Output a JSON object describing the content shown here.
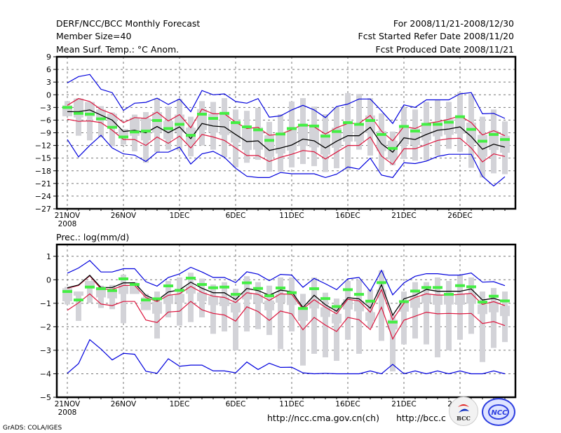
{
  "header": {
    "title": "DERF/NCC/BCC Monthly Forecast",
    "member_size": "Member Size=40",
    "temp_label": "Mean Surf. Temp.: °C Anom.",
    "period": "For 2008/11/21-2008/12/30",
    "started": "Fcst Started Refer Date 2008/11/20",
    "produced": "Fcst Produced Date 2008/11/21"
  },
  "footer": {
    "url1": "http://ncc.cma.gov.cn(ch)",
    "url2": "http://bcc.c",
    "grads": "GrADS: COLA/IGES",
    "logo1": "BCC",
    "logo2": "NCC"
  },
  "colors": {
    "mean": "#000000",
    "spread": "#dc143c",
    "extreme": "#0000dd",
    "median": "#44ee44",
    "box": "#d3d3d8"
  },
  "chart_data": [
    {
      "type": "line",
      "title": "Mean Surf. Temp.: °C Anom.",
      "ylabel": "°C Anom.",
      "ylim": [
        -27,
        9
      ],
      "yticks": [
        9,
        6,
        3,
        0,
        -3,
        -6,
        -9,
        -12,
        -15,
        -18,
        -21,
        -24,
        -27
      ],
      "xticks": [
        {
          "day": 0,
          "label": "21NOV",
          "sub": "2008"
        },
        {
          "day": 5,
          "label": "26NOV"
        },
        {
          "day": 10,
          "label": "1DEC"
        },
        {
          "day": 15,
          "label": "6DEC"
        },
        {
          "day": 20,
          "label": "11DEC"
        },
        {
          "day": 25,
          "label": "16DEC"
        },
        {
          "day": 30,
          "label": "21DEC"
        },
        {
          "day": 35,
          "label": "26DEC"
        }
      ],
      "grid": true,
      "days": 40,
      "series": [
        {
          "name": "max",
          "color": "extreme",
          "values": [
            2.8,
            4.3,
            4.8,
            1.3,
            0.5,
            -3.7,
            -2.0,
            -1.8,
            -0.8,
            -2.3,
            -1.0,
            -4.0,
            1.0,
            0.0,
            0.2,
            -1.6,
            -2.0,
            -0.9,
            -5.3,
            -5.0,
            -3.6,
            -2.5,
            -3.6,
            -5.4,
            -2.8,
            -2.2,
            -1.0,
            -1.0,
            -3.8,
            -6.8,
            -2.4,
            -3.0,
            -1.2,
            -1.2,
            -1.2,
            0.2,
            0.5,
            -4.5,
            -4.4,
            -5.6
          ]
        },
        {
          "name": "upper",
          "color": "spread",
          "values": [
            -2.5,
            -0.9,
            -1.6,
            -3.5,
            -4.5,
            -6.6,
            -5.4,
            -5.6,
            -4.1,
            -6.2,
            -4.7,
            -7.8,
            -3.4,
            -4.5,
            -4.5,
            -6.5,
            -8.0,
            -7.7,
            -9.6,
            -9.3,
            -8.3,
            -7.0,
            -7.6,
            -9.3,
            -7.8,
            -6.8,
            -6.8,
            -4.9,
            -8.6,
            -10.9,
            -7.5,
            -8.0,
            -6.8,
            -6.4,
            -5.8,
            -5.0,
            -6.6,
            -9.5,
            -8.5,
            -9.7
          ]
        },
        {
          "name": "mean",
          "color": "mean",
          "values": [
            -4.0,
            -4.0,
            -3.6,
            -4.8,
            -6.0,
            -8.7,
            -8.4,
            -9.0,
            -7.5,
            -9.0,
            -7.6,
            -10.4,
            -6.8,
            -7.4,
            -7.6,
            -9.4,
            -11.1,
            -10.9,
            -13.2,
            -12.6,
            -11.9,
            -10.5,
            -10.9,
            -12.6,
            -11.0,
            -9.7,
            -9.7,
            -7.7,
            -11.6,
            -13.6,
            -10.2,
            -10.6,
            -9.4,
            -8.4,
            -8.1,
            -7.6,
            -9.9,
            -12.9,
            -11.7,
            -12.4
          ]
        },
        {
          "name": "lower",
          "color": "spread",
          "values": [
            -5.8,
            -6.3,
            -6.2,
            -6.6,
            -8.4,
            -10.6,
            -10.6,
            -12.0,
            -10.0,
            -11.5,
            -9.8,
            -12.6,
            -9.4,
            -10.0,
            -10.8,
            -12.6,
            -14.4,
            -14.4,
            -15.8,
            -14.8,
            -14.1,
            -13.2,
            -13.5,
            -15.2,
            -13.6,
            -12.0,
            -12.0,
            -10.0,
            -14.5,
            -16.5,
            -12.8,
            -12.8,
            -11.8,
            -10.8,
            -10.4,
            -10.3,
            -12.6,
            -15.9,
            -14.0,
            -14.6
          ]
        },
        {
          "name": "min",
          "color": "extreme",
          "values": [
            -10.6,
            -14.7,
            -12.0,
            -9.6,
            -12.6,
            -14.0,
            -14.3,
            -15.8,
            -13.6,
            -13.6,
            -12.4,
            -16.4,
            -14.0,
            -13.4,
            -14.8,
            -17.4,
            -19.3,
            -19.6,
            -19.6,
            -18.4,
            -18.7,
            -18.7,
            -18.7,
            -19.6,
            -18.8,
            -17.1,
            -17.6,
            -15.0,
            -19.0,
            -19.6,
            -16.1,
            -16.3,
            -15.7,
            -14.6,
            -14.1,
            -14.1,
            -14.1,
            -19.3,
            -21.6,
            -19.4
          ]
        },
        {
          "name": "median",
          "color": "median",
          "values": [
            -3.0,
            -4.4,
            -4.6,
            -5.7,
            -7.7,
            -10.0,
            -8.8,
            -8.6,
            -6.1,
            -8.0,
            -7.0,
            -9.6,
            -4.6,
            -5.6,
            -4.4,
            -6.6,
            -7.6,
            -8.3,
            -10.8,
            -9.3,
            -8.0,
            -7.2,
            -7.4,
            -9.8,
            -8.7,
            -6.6,
            -7.0,
            -6.1,
            -9.4,
            -12.7,
            -7.5,
            -8.6,
            -7.0,
            -7.0,
            -6.5,
            -5.2,
            -8.2,
            -11.0,
            -9.4,
            -10.6
          ]
        },
        {
          "name": "box_hi",
          "color": "box",
          "values": [
            -1.5,
            -0.8,
            -1.7,
            -2.7,
            -4.2,
            -8.1,
            -4.7,
            -4.1,
            -0.8,
            -2.8,
            -1.0,
            -5.2,
            -1.5,
            -1.7,
            -0.8,
            -3.5,
            -3.8,
            -3.1,
            -6.4,
            -4.6,
            -1.6,
            -0.8,
            -2.8,
            -4.6,
            -3.0,
            0.4,
            0.2,
            -0.8,
            -4.4,
            -8.7,
            -3.0,
            -3.5,
            -1.7,
            -1.2,
            -1.7,
            0.6,
            0.2,
            -5.2,
            -3.5,
            -6.3
          ]
        },
        {
          "name": "box_lo",
          "color": "box",
          "values": [
            -5.0,
            -9.7,
            -10.8,
            -10.1,
            -12.2,
            -11.8,
            -13.4,
            -16.1,
            -13.6,
            -13.0,
            -13.2,
            -14.6,
            -12.0,
            -13.0,
            -14.8,
            -17.2,
            -16.1,
            -15.4,
            -18.2,
            -18.2,
            -17.2,
            -16.4,
            -16.9,
            -18.3,
            -17.4,
            -17.8,
            -13.0,
            -14.4,
            -18.0,
            -16.7,
            -15.2,
            -15.6,
            -15.6,
            -14.4,
            -12.8,
            -13.5,
            -17.3,
            -19.6,
            -18.6,
            -18.8
          ]
        }
      ]
    },
    {
      "type": "line",
      "title": "Prec.: log(mm/d)",
      "ylabel": "log(mm/d)",
      "ylim": [
        -5,
        1.5
      ],
      "yticks": [
        1,
        0,
        -1,
        -2,
        -3,
        -4,
        -5
      ],
      "xticks": [
        {
          "day": 0,
          "label": "21NOV",
          "sub": "2008"
        },
        {
          "day": 5,
          "label": "26NOV"
        },
        {
          "day": 10,
          "label": "1DEC"
        },
        {
          "day": 15,
          "label": "6DEC"
        },
        {
          "day": 20,
          "label": "11DEC"
        },
        {
          "day": 25,
          "label": "16DEC"
        },
        {
          "day": 30,
          "label": "21DEC"
        },
        {
          "day": 35,
          "label": "26DEC"
        }
      ],
      "grid": true,
      "days": 40,
      "series": [
        {
          "name": "max",
          "color": "extreme",
          "values": [
            0.28,
            0.5,
            0.82,
            0.33,
            0.33,
            0.47,
            0.47,
            -0.08,
            -0.27,
            0.1,
            0.25,
            0.53,
            0.33,
            0.1,
            0.1,
            -0.12,
            0.34,
            0.24,
            -0.04,
            0.23,
            0.2,
            -0.32,
            0.06,
            -0.17,
            -0.42,
            0.04,
            0.1,
            -0.49,
            0.4,
            -0.64,
            -0.13,
            0.15,
            0.26,
            0.26,
            0.2,
            0.2,
            0.29,
            -0.1,
            -0.08,
            -0.25
          ]
        },
        {
          "name": "upper",
          "color": "spread",
          "values": [
            -0.36,
            -0.24,
            0.17,
            -0.39,
            -0.41,
            -0.24,
            -0.24,
            -0.75,
            -0.93,
            -0.66,
            -0.6,
            -0.28,
            -0.54,
            -0.7,
            -0.75,
            -0.97,
            -0.55,
            -0.62,
            -0.88,
            -0.6,
            -0.62,
            -1.24,
            -0.85,
            -1.17,
            -1.45,
            -0.83,
            -0.9,
            -1.38,
            -0.42,
            -1.7,
            -1.0,
            -0.75,
            -0.6,
            -0.65,
            -0.65,
            -0.62,
            -0.58,
            -1.05,
            -0.93,
            -1.1
          ]
        },
        {
          "name": "mean",
          "color": "mean",
          "values": [
            -0.34,
            -0.22,
            0.19,
            -0.33,
            -0.33,
            -0.13,
            -0.13,
            -0.66,
            -0.88,
            -0.52,
            -0.43,
            -0.1,
            -0.36,
            -0.55,
            -0.55,
            -0.84,
            -0.37,
            -0.46,
            -0.66,
            -0.44,
            -0.51,
            -1.18,
            -0.66,
            -1.06,
            -1.34,
            -0.76,
            -0.81,
            -1.21,
            -0.21,
            -1.51,
            -0.81,
            -0.66,
            -0.41,
            -0.49,
            -0.49,
            -0.49,
            -0.39,
            -0.86,
            -0.79,
            -0.94
          ]
        },
        {
          "name": "lower",
          "color": "spread",
          "values": [
            -1.3,
            -0.98,
            -0.6,
            -1.03,
            -1.1,
            -0.92,
            -0.92,
            -1.71,
            -1.82,
            -1.37,
            -1.34,
            -0.92,
            -1.28,
            -1.43,
            -1.5,
            -1.76,
            -1.15,
            -1.35,
            -1.73,
            -1.33,
            -1.45,
            -2.13,
            -1.6,
            -1.93,
            -2.2,
            -1.6,
            -1.7,
            -2.12,
            -1.17,
            -2.52,
            -1.72,
            -1.55,
            -1.38,
            -1.45,
            -1.43,
            -1.45,
            -1.43,
            -1.86,
            -1.78,
            -1.95
          ]
        },
        {
          "name": "min",
          "color": "extreme",
          "values": [
            -3.98,
            -3.57,
            -2.55,
            -2.95,
            -3.41,
            -3.13,
            -3.17,
            -3.89,
            -3.98,
            -3.36,
            -3.68,
            -3.63,
            -3.63,
            -3.88,
            -3.88,
            -3.96,
            -3.5,
            -3.82,
            -3.55,
            -3.73,
            -3.72,
            -3.96,
            -4.0,
            -3.98,
            -4.0,
            -4.0,
            -4.0,
            -3.88,
            -4.0,
            -3.6,
            -4.0,
            -3.88,
            -4.0,
            -3.88,
            -4.0,
            -3.88,
            -4.0,
            -4.0,
            -3.88,
            -4.0
          ]
        },
        {
          "name": "median",
          "color": "median",
          "values": [
            -0.5,
            -0.86,
            -0.31,
            -0.38,
            -0.46,
            0.04,
            -0.2,
            -0.86,
            -0.81,
            -0.26,
            -0.45,
            0.07,
            -0.2,
            -0.34,
            -0.31,
            -0.62,
            -0.13,
            -0.37,
            -0.68,
            -0.35,
            -0.55,
            -1.22,
            -0.38,
            -0.8,
            -1.14,
            -0.42,
            -0.62,
            -0.91,
            -0.12,
            -1.8,
            -0.93,
            -0.48,
            -0.33,
            -0.33,
            -0.62,
            -0.25,
            -0.3,
            -0.95,
            -0.7,
            -0.9
          ]
        },
        {
          "name": "box_hi",
          "color": "box",
          "values": [
            -0.3,
            -0.5,
            -0.05,
            -0.25,
            -0.22,
            0.22,
            -0.1,
            -0.6,
            -0.5,
            -0.05,
            0.1,
            0.3,
            0.05,
            -0.2,
            -0.1,
            -0.38,
            0.15,
            -0.1,
            -0.25,
            0.1,
            0.1,
            -0.6,
            0.1,
            -0.55,
            -0.8,
            -0.05,
            0.0,
            -0.4,
            0.4,
            -1.5,
            -0.5,
            -0.1,
            -0.1,
            0.1,
            -0.05,
            0.2,
            0.1,
            -0.5,
            -0.35,
            -0.5
          ]
        },
        {
          "name": "box_lo",
          "color": "box",
          "values": [
            -1.05,
            -1.75,
            -0.98,
            -1.2,
            -1.25,
            -1.85,
            -0.6,
            -1.0,
            -2.5,
            -1.6,
            -1.95,
            -1.8,
            -1.6,
            -2.3,
            -2.2,
            -3.0,
            -2.2,
            -2.1,
            -2.35,
            -2.95,
            -2.2,
            -3.65,
            -3.15,
            -3.3,
            -3.45,
            -2.55,
            -3.15,
            -2.05,
            -2.6,
            -3.9,
            -2.75,
            -2.5,
            -2.75,
            -3.3,
            -3.0,
            -2.55,
            -2.3,
            -3.5,
            -2.9,
            -2.65
          ]
        }
      ]
    }
  ]
}
